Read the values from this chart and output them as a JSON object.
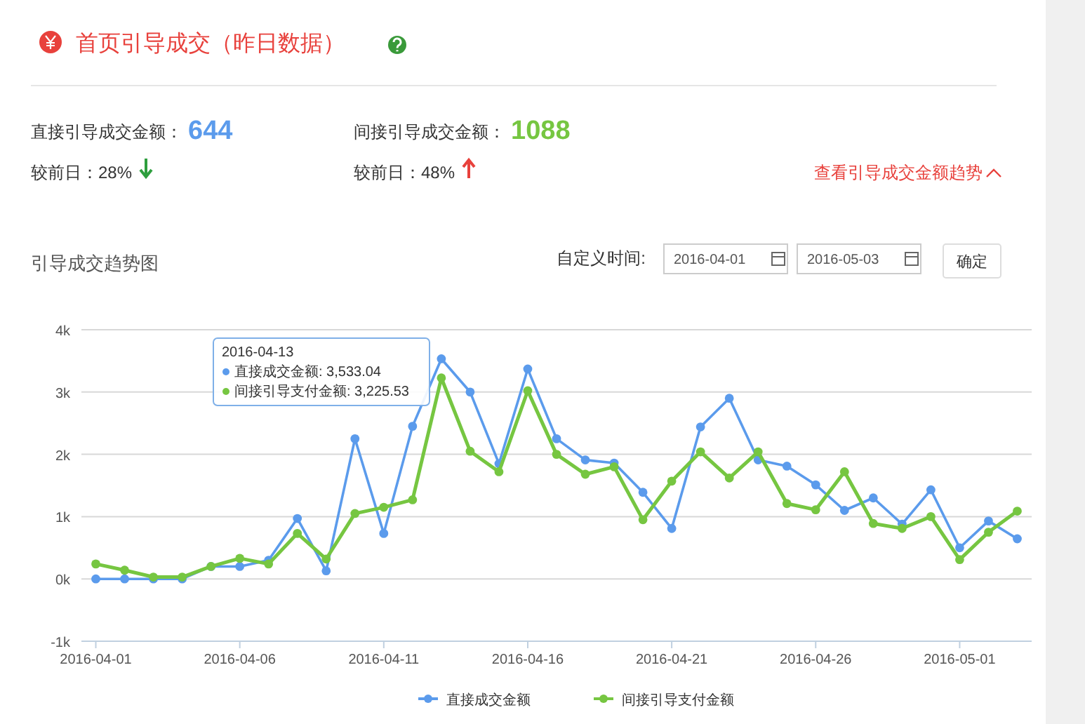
{
  "chart_data": {
    "type": "line",
    "title": "首页引导成交（昨日数据）",
    "subtitle": "引导成交趋势图",
    "x": [
      "2016-04-01",
      "2016-04-02",
      "2016-04-03",
      "2016-04-04",
      "2016-04-05",
      "2016-04-06",
      "2016-04-07",
      "2016-04-08",
      "2016-04-09",
      "2016-04-10",
      "2016-04-11",
      "2016-04-12",
      "2016-04-13",
      "2016-04-14",
      "2016-04-15",
      "2016-04-16",
      "2016-04-17",
      "2016-04-18",
      "2016-04-19",
      "2016-04-20",
      "2016-04-21",
      "2016-04-22",
      "2016-04-23",
      "2016-04-24",
      "2016-04-25",
      "2016-04-26",
      "2016-04-27",
      "2016-04-28",
      "2016-04-29",
      "2016-04-30",
      "2016-05-01",
      "2016-05-02",
      "2016-05-03"
    ],
    "series": [
      {
        "name": "直接成交金额",
        "color": "#5b9bec",
        "values": [
          0,
          0,
          0,
          0,
          200,
          200,
          300,
          970,
          130,
          2250,
          730,
          2450,
          3533.04,
          3000,
          1850,
          3370,
          2250,
          1910,
          1860,
          1390,
          810,
          2440,
          2900,
          1910,
          1810,
          1510,
          1100,
          1300,
          880,
          1430,
          500,
          930,
          644
        ]
      },
      {
        "name": "间接引导支付金额",
        "color": "#76c641",
        "values": [
          240,
          140,
          30,
          30,
          200,
          330,
          240,
          730,
          320,
          1050,
          1150,
          1270,
          3225.53,
          2050,
          1720,
          3020,
          2000,
          1680,
          1800,
          950,
          1570,
          2040,
          1620,
          2040,
          1210,
          1110,
          1720,
          890,
          810,
          1000,
          310,
          750,
          1088
        ]
      }
    ],
    "xlim": [
      "2016-03-31T12:00",
      "2016-05-03T12:00"
    ],
    "xticks": [
      "2016-04-01",
      "2016-04-06",
      "2016-04-11",
      "2016-04-16",
      "2016-04-21",
      "2016-04-26",
      "2016-05-01"
    ],
    "ylim": [
      -1000,
      4000
    ],
    "yticks": [
      {
        "value": -1000,
        "label": "-1k"
      },
      {
        "value": 0,
        "label": "0k"
      },
      {
        "value": 1000,
        "label": "1k"
      },
      {
        "value": 2000,
        "label": "2k"
      },
      {
        "value": 3000,
        "label": "3k"
      },
      {
        "value": 4000,
        "label": "4k"
      }
    ],
    "grid": "y",
    "legend": "bottom",
    "marker": "circle",
    "line_style": "solid",
    "annotations": [
      "直接引导成交金额：",
      "644",
      "间接引导成交金额：",
      "1088",
      "较前日：28%",
      "较前日：48%",
      "查看引导成交金额趋势",
      "自定义时间:",
      "2016-04-01",
      "2016-05-03",
      "确定",
      "2016-04-13",
      "直接成交金额: 3,533.04",
      "间接引导支付金额: 3,225.53"
    ]
  }
}
